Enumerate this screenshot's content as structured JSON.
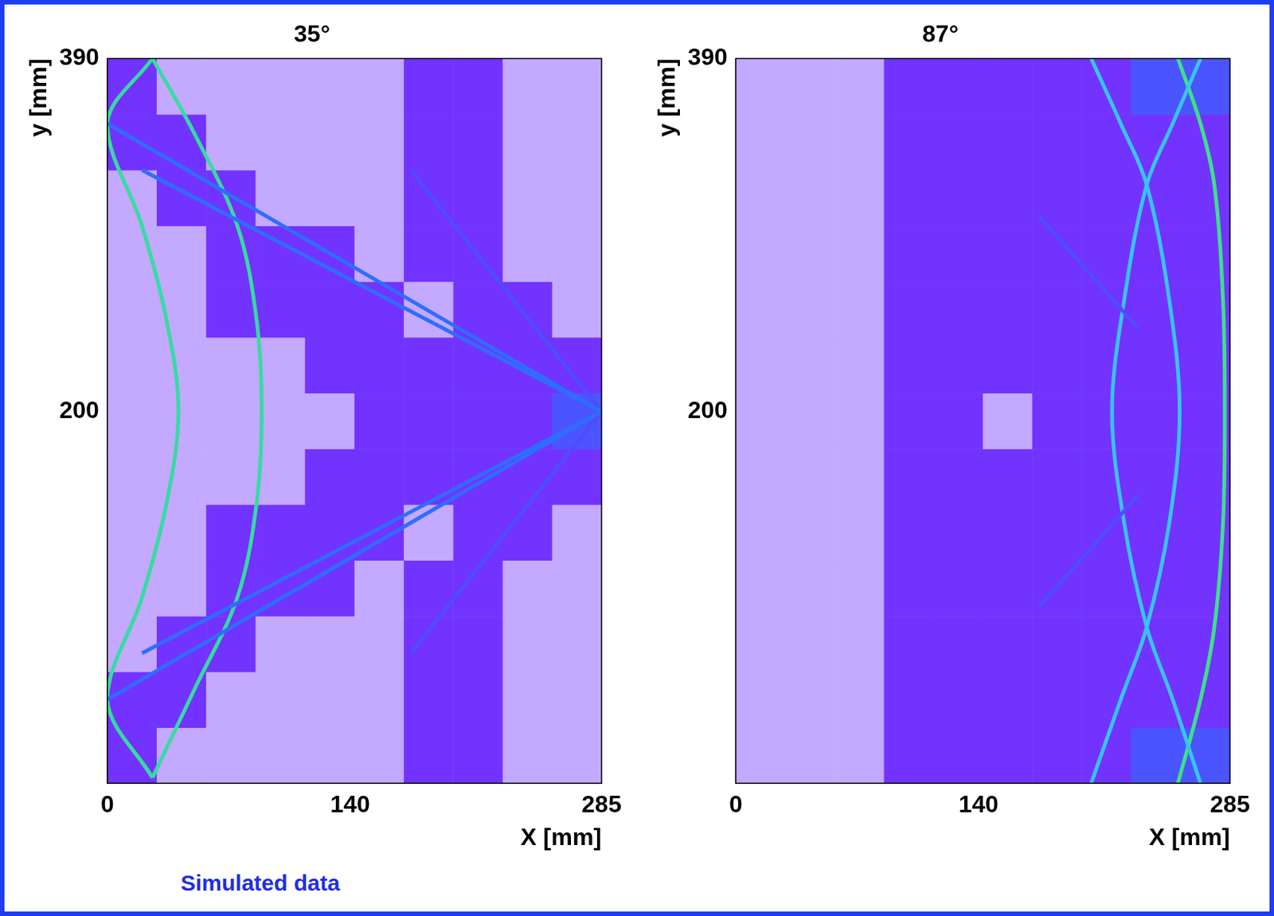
{
  "chart_data": [
    {
      "type": "heatmap",
      "title": "35°",
      "x_label": "X [mm]",
      "y_label": "y [mm]",
      "xlim": [
        0,
        285
      ],
      "ylim": [
        0,
        390
      ],
      "xticks": [
        0,
        140,
        285
      ],
      "yticks": [
        200,
        390
      ],
      "grid": false,
      "cells": {
        "x_edges": [
          0,
          28.5,
          57,
          85.5,
          114,
          142.5,
          171,
          199.5,
          228,
          256.5,
          285
        ],
        "y_edges": [
          0,
          30,
          60,
          90,
          120,
          150,
          180,
          210,
          240,
          270,
          300,
          330,
          360,
          390
        ],
        "values": [
          [
            2,
            1,
            1,
            1,
            1,
            1,
            2,
            2,
            1,
            1
          ],
          [
            2,
            2,
            1,
            1,
            1,
            1,
            2,
            2,
            1,
            1
          ],
          [
            1,
            2,
            2,
            1,
            1,
            1,
            2,
            2,
            1,
            1
          ],
          [
            1,
            1,
            2,
            2,
            2,
            1,
            2,
            2,
            1,
            1
          ],
          [
            1,
            1,
            2,
            2,
            2,
            2,
            1,
            2,
            2,
            1
          ],
          [
            1,
            1,
            1,
            1,
            2,
            2,
            2,
            2,
            2,
            2
          ],
          [
            1,
            1,
            1,
            1,
            1,
            2,
            2,
            2,
            2,
            3
          ],
          [
            1,
            1,
            1,
            1,
            2,
            2,
            2,
            2,
            2,
            2
          ],
          [
            1,
            1,
            2,
            2,
            2,
            2,
            1,
            2,
            2,
            1
          ],
          [
            1,
            1,
            2,
            2,
            2,
            1,
            2,
            2,
            1,
            1
          ],
          [
            1,
            2,
            2,
            1,
            1,
            1,
            2,
            2,
            1,
            1
          ],
          [
            2,
            2,
            1,
            1,
            1,
            1,
            2,
            2,
            1,
            1
          ],
          [
            2,
            1,
            1,
            1,
            1,
            1,
            2,
            2,
            1,
            1
          ]
        ]
      },
      "series": [
        {
          "type": "line",
          "color": "#2f6dff",
          "x": [
            0,
            285
          ],
          "values": [
            355,
            200
          ]
        },
        {
          "type": "line",
          "color": "#2f6dff",
          "x": [
            20,
            285
          ],
          "values": [
            330,
            200
          ]
        },
        {
          "type": "line",
          "color": "#2f6dff",
          "x": [
            0,
            285
          ],
          "values": [
            45,
            200
          ]
        },
        {
          "type": "line",
          "color": "#2f6dff",
          "x": [
            20,
            285
          ],
          "values": [
            70,
            200
          ]
        },
        {
          "type": "line",
          "color": "#4f4cff",
          "x": [
            175,
            285
          ],
          "values": [
            330,
            200
          ]
        },
        {
          "type": "line",
          "color": "#4f4cff",
          "x": [
            175,
            285
          ],
          "values": [
            70,
            200
          ]
        },
        {
          "type": "line",
          "color": "#36dca0",
          "x": [
            26,
            0,
            20,
            34,
            41,
            34,
            20,
            0,
            26
          ],
          "values": [
            390,
            355,
            300,
            250,
            200,
            150,
            100,
            45,
            3
          ]
        },
        {
          "type": "line",
          "color": "#36dca0",
          "x": [
            26,
            50,
            75,
            86,
            89,
            86,
            75,
            50,
            26
          ],
          "values": [
            390,
            350,
            300,
            250,
            200,
            150,
            100,
            50,
            3
          ]
        }
      ]
    },
    {
      "type": "heatmap",
      "title": "87°",
      "x_label": "X [mm]",
      "y_label": "y [mm]",
      "xlim": [
        0,
        285
      ],
      "ylim": [
        0,
        390
      ],
      "xticks": [
        0,
        140,
        285
      ],
      "yticks": [
        200,
        390
      ],
      "grid": false,
      "cells": {
        "x_edges": [
          0,
          28.5,
          57,
          85.5,
          114,
          142.5,
          171,
          199.5,
          228,
          256.5,
          285
        ],
        "y_edges": [
          0,
          30,
          60,
          90,
          120,
          150,
          180,
          210,
          240,
          270,
          300,
          330,
          360,
          390
        ],
        "values": [
          [
            1,
            1,
            1,
            2,
            2,
            2,
            2,
            2,
            3,
            3
          ],
          [
            1,
            1,
            1,
            2,
            2,
            2,
            2,
            2,
            2,
            2
          ],
          [
            1,
            1,
            1,
            2,
            2,
            2,
            2,
            2,
            2,
            2
          ],
          [
            1,
            1,
            1,
            2,
            2,
            2,
            2,
            2,
            2,
            2
          ],
          [
            1,
            1,
            1,
            2,
            2,
            2,
            2,
            2,
            2,
            2
          ],
          [
            1,
            1,
            1,
            2,
            2,
            2,
            2,
            2,
            2,
            2
          ],
          [
            1,
            1,
            1,
            2,
            2,
            1,
            2,
            2,
            2,
            2
          ],
          [
            1,
            1,
            1,
            2,
            2,
            2,
            2,
            2,
            2,
            2
          ],
          [
            1,
            1,
            1,
            2,
            2,
            2,
            2,
            2,
            2,
            2
          ],
          [
            1,
            1,
            1,
            2,
            2,
            2,
            2,
            2,
            2,
            2
          ],
          [
            1,
            1,
            1,
            2,
            2,
            2,
            2,
            2,
            2,
            2
          ],
          [
            1,
            1,
            1,
            2,
            2,
            2,
            2,
            2,
            2,
            2
          ],
          [
            1,
            1,
            1,
            2,
            2,
            2,
            2,
            2,
            3,
            3
          ]
        ]
      },
      "series": [
        {
          "type": "line",
          "color": "#4f4cff",
          "x": [
            175,
            232
          ],
          "values": [
            305,
            245
          ]
        },
        {
          "type": "line",
          "color": "#4f4cff",
          "x": [
            175,
            232
          ],
          "values": [
            95,
            155
          ]
        },
        {
          "type": "line",
          "color": "#38c4ee",
          "x": [
            205,
            222,
            237,
            250,
            256,
            250,
            237,
            222,
            205
          ],
          "values": [
            390,
            355,
            322,
            260,
            200,
            140,
            84,
            45,
            0
          ]
        },
        {
          "type": "line",
          "color": "#38c4ee",
          "x": [
            268,
            252,
            237,
            224,
            217,
            224,
            237,
            252,
            268
          ],
          "values": [
            390,
            355,
            322,
            260,
            200,
            140,
            84,
            45,
            0
          ]
        },
        {
          "type": "line",
          "color": "#3ee08a",
          "x": [
            255,
            268,
            276,
            281,
            282,
            281,
            276,
            268,
            255
          ],
          "values": [
            390,
            355,
            322,
            260,
            200,
            140,
            84,
            45,
            0
          ]
        }
      ]
    }
  ],
  "caption": "Simulated data"
}
